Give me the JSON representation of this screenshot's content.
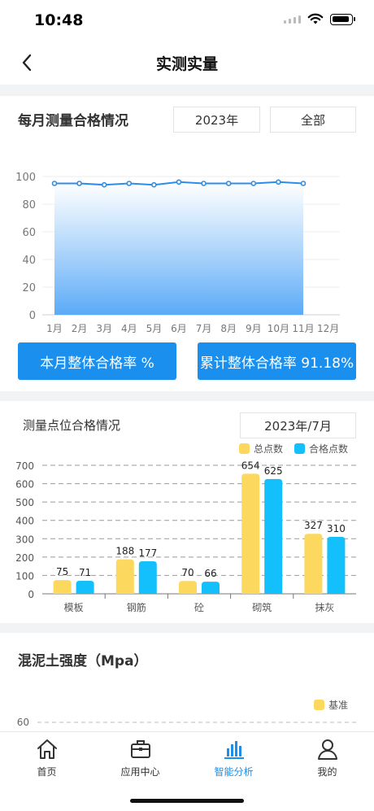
{
  "status_bar": {
    "time": "10:48"
  },
  "nav": {
    "title": "实测实量"
  },
  "monthly": {
    "title": "每月测量合格情况",
    "year_select": "2023年",
    "scope_select": "全部",
    "this_month_label": "本月整体合格率 %",
    "cumulative_label": "累计整体合格率 91.18%"
  },
  "points": {
    "title": "测量点位合格情况",
    "month_select": "2023年/7月",
    "legend_total": "总点数",
    "legend_qualified": "合格点数"
  },
  "concrete": {
    "title": "混泥土强度（Mpa）",
    "legend_baseline": "基准",
    "visible_tick": "60"
  },
  "tabs": [
    {
      "label": "首页",
      "icon": "home-icon"
    },
    {
      "label": "应用中心",
      "icon": "briefcase-icon"
    },
    {
      "label": "智能分析",
      "icon": "bar-chart-icon"
    },
    {
      "label": "我的",
      "icon": "user-icon"
    }
  ],
  "colors": {
    "primary": "#1a8fee",
    "line": "#2b8de8",
    "total_bar": "#fcd85e",
    "qualified_bar": "#14c0fb"
  },
  "chart_data": [
    {
      "type": "area",
      "categories": [
        "1月",
        "2月",
        "3月",
        "4月",
        "5月",
        "6月",
        "7月",
        "8月",
        "9月",
        "10月",
        "11月",
        "12月"
      ],
      "series": [
        {
          "values": [
            95,
            95,
            94,
            95,
            94,
            96,
            95,
            95,
            95,
            96,
            95,
            null
          ]
        }
      ],
      "ylim": [
        0,
        100
      ],
      "yticks": [
        "0",
        "20",
        "40",
        "60",
        "80",
        "100"
      ],
      "grid": true
    },
    {
      "type": "bar",
      "categories": [
        "模板",
        "钢筋",
        "砼",
        "砌筑",
        "抹灰"
      ],
      "series": [
        {
          "name": "总点数",
          "values": [
            75,
            188,
            70,
            654,
            327
          ]
        },
        {
          "name": "合格点数",
          "values": [
            71,
            177,
            66,
            625,
            310
          ]
        }
      ],
      "ylim": [
        0,
        700
      ],
      "yticks": [
        "0",
        "100",
        "200",
        "300",
        "400",
        "500",
        "600",
        "700"
      ],
      "legend": "top-right",
      "grid": true
    }
  ]
}
